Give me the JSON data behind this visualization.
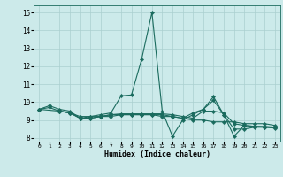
{
  "xlabel": "Humidex (Indice chaleur)",
  "xlim": [
    -0.5,
    23.5
  ],
  "ylim": [
    7.8,
    15.4
  ],
  "yticks": [
    8,
    9,
    10,
    11,
    12,
    13,
    14,
    15
  ],
  "xticks": [
    0,
    1,
    2,
    3,
    4,
    5,
    6,
    7,
    8,
    9,
    10,
    11,
    12,
    13,
    14,
    15,
    16,
    17,
    18,
    19,
    20,
    21,
    22,
    23
  ],
  "bg_color": "#cceaea",
  "line_color": "#1a6b5e",
  "grid_color": "#aacfcf",
  "series": [
    {
      "x": [
        0,
        1,
        2,
        3,
        4,
        5,
        6,
        7,
        8,
        9,
        10,
        11,
        12,
        13,
        14,
        15,
        16,
        17,
        18,
        19,
        20,
        21,
        22,
        23
      ],
      "y": [
        9.6,
        9.8,
        9.6,
        9.5,
        9.1,
        9.2,
        9.3,
        9.4,
        10.35,
        10.4,
        12.4,
        15.0,
        9.5,
        8.1,
        9.0,
        9.3,
        9.6,
        10.1,
        9.3,
        8.1,
        8.7,
        8.65,
        8.6,
        8.6
      ]
    },
    {
      "x": [
        0,
        1,
        2,
        3,
        4,
        5,
        6,
        7,
        8,
        9,
        10,
        11,
        12,
        13,
        14,
        15,
        16,
        17,
        18,
        19,
        20,
        21,
        22,
        23
      ],
      "y": [
        9.6,
        9.7,
        9.5,
        9.4,
        9.2,
        9.2,
        9.2,
        9.3,
        9.3,
        9.3,
        9.3,
        9.3,
        9.3,
        9.2,
        9.1,
        9.0,
        9.0,
        8.9,
        8.9,
        8.9,
        8.8,
        8.8,
        8.8,
        8.7
      ]
    },
    {
      "x": [
        0,
        2,
        3,
        4,
        5,
        6,
        7,
        8,
        9,
        10,
        11,
        12,
        13,
        14,
        15,
        16,
        17,
        18,
        19,
        20,
        21,
        22,
        23
      ],
      "y": [
        9.6,
        9.5,
        9.4,
        9.1,
        9.1,
        9.2,
        9.3,
        9.35,
        9.35,
        9.35,
        9.35,
        9.35,
        9.3,
        9.2,
        9.1,
        9.5,
        9.5,
        9.4,
        8.8,
        8.7,
        8.65,
        8.65,
        8.6
      ]
    },
    {
      "x": [
        2,
        3,
        4,
        5,
        6,
        7,
        8,
        9,
        10,
        11,
        12,
        13,
        14,
        15,
        16,
        17,
        18,
        19,
        20,
        21,
        22,
        23
      ],
      "y": [
        9.5,
        9.4,
        9.1,
        9.1,
        9.2,
        9.2,
        9.3,
        9.3,
        9.3,
        9.3,
        9.2,
        9.2,
        9.1,
        9.4,
        9.6,
        10.3,
        9.3,
        8.5,
        8.5,
        8.6,
        8.6,
        8.55
      ]
    }
  ]
}
